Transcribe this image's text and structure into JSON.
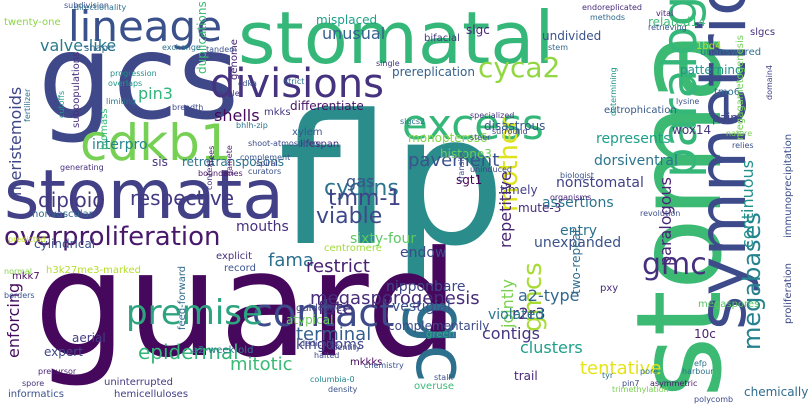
{
  "words": [
    {
      "text": "flp",
      "color": "#2a8c8b"
    },
    {
      "text": "guard",
      "color": "#46085c"
    },
    {
      "text": "stoma",
      "color": "#3cba74"
    },
    {
      "text": "gcs",
      "color": "#3f4889"
    },
    {
      "text": "stomatal",
      "color": "#35b779"
    },
    {
      "text": "stomata",
      "color": "#424086"
    },
    {
      "text": "symmetric",
      "color": "#3d4b8a"
    },
    {
      "text": "paralogue",
      "color": "#35b779"
    },
    {
      "text": "gc",
      "color": "#2d708e"
    },
    {
      "text": "lineage",
      "color": "#3b518b"
    },
    {
      "text": "divisions",
      "color": "#46337f"
    },
    {
      "text": "excess",
      "color": "#35b779"
    },
    {
      "text": "cdkb1",
      "color": "#75d054"
    },
    {
      "text": "contact",
      "color": "#3e4a89"
    },
    {
      "text": "premise",
      "color": "#2ea37f"
    },
    {
      "text": "overproliferation",
      "color": "#48196b"
    },
    {
      "text": "cyca2",
      "color": "#91d742"
    },
    {
      "text": "mother",
      "color": "#dde318"
    },
    {
      "text": "gmcs",
      "color": "#a8db34"
    },
    {
      "text": "gmc",
      "color": "#46307e"
    },
    {
      "text": "megabases",
      "color": "#26828e"
    },
    {
      "text": "megasporogenesis",
      "color": "#472c7a"
    },
    {
      "text": "viable",
      "color": "#3e4989"
    },
    {
      "text": "cyclins",
      "color": "#2c738e"
    },
    {
      "text": "tmm-1",
      "color": "#404387"
    },
    {
      "text": "respective",
      "color": "#443a83"
    },
    {
      "text": "diploid",
      "color": "#453882"
    },
    {
      "text": "pavement",
      "color": "#3b528b"
    },
    {
      "text": "epidermal",
      "color": "#32b67a"
    },
    {
      "text": "terminal",
      "color": "#355f8d"
    },
    {
      "text": "mitotic",
      "color": "#3aba76"
    },
    {
      "text": "fama",
      "color": "#2d708e"
    },
    {
      "text": "restrict",
      "color": "#482173"
    },
    {
      "text": "fate",
      "color": "#472a7a"
    },
    {
      "text": "gas",
      "color": "#3a548c"
    },
    {
      "text": "a2-type",
      "color": "#31688e"
    },
    {
      "text": "r2r3",
      "color": "#472d7b"
    },
    {
      "text": "contigs",
      "color": "#453581"
    },
    {
      "text": "clusters",
      "color": "#1fa088"
    },
    {
      "text": "tentative",
      "color": "#e5e419"
    },
    {
      "text": "meristemoids",
      "color": "#3f4788"
    },
    {
      "text": "valve-like",
      "color": "#297b8e"
    },
    {
      "text": "pin3",
      "color": "#30b57a"
    },
    {
      "text": "unusual",
      "color": "#34618d"
    },
    {
      "text": "jointly",
      "color": "#7ad151"
    },
    {
      "text": "repetitive",
      "color": "#482475"
    },
    {
      "text": "paralogous",
      "color": "#482677"
    },
    {
      "text": "enforcing",
      "color": "#460b5e"
    },
    {
      "text": "shells",
      "color": "#460a5d"
    },
    {
      "text": "continuous",
      "color": "#20928c"
    },
    {
      "text": "kingdoms",
      "color": "#3f4889"
    },
    {
      "text": "interpro",
      "color": "#25848e"
    },
    {
      "text": "mouths",
      "color": "#472f7d"
    },
    {
      "text": "dorsiventral",
      "color": "#2b758e"
    },
    {
      "text": "unexpanded",
      "color": "#3b528b"
    },
    {
      "text": "nonstomatal",
      "color": "#414287"
    },
    {
      "text": "entry",
      "color": "#2c728e"
    },
    {
      "text": "represents",
      "color": "#1f9e89"
    },
    {
      "text": "symmetric-small",
      "color": "#482173"
    },
    {
      "text": "two-repeat",
      "color": "#2f6c8e"
    },
    {
      "text": "sixty-four",
      "color": "#5cc863"
    },
    {
      "text": "nipponbare",
      "color": "#3f4788"
    },
    {
      "text": "vestigial",
      "color": "#3b528b"
    },
    {
      "text": "violated",
      "color": "#2a778e"
    },
    {
      "text": "assertions",
      "color": "#2b758e"
    },
    {
      "text": "mute-3",
      "color": "#472a7a"
    },
    {
      "text": "timely",
      "color": "#423f85"
    },
    {
      "text": "endow",
      "color": "#3e4989"
    },
    {
      "text": "duplications",
      "color": "#3bbb75"
    },
    {
      "text": "sgt1",
      "color": "#440154"
    },
    {
      "text": "histone3",
      "color": "#6ccd5a"
    },
    {
      "text": "monopteros6",
      "color": "#87d549"
    },
    {
      "text": "retrotransposons",
      "color": "#2c738e"
    },
    {
      "text": "sis",
      "color": "#46337f"
    },
    {
      "text": "shape",
      "color": "#31688e"
    },
    {
      "text": "misplaced",
      "color": "#1fa188"
    },
    {
      "text": "bifacial",
      "color": "#453882"
    },
    {
      "text": "slgc",
      "color": "#482878"
    },
    {
      "text": "undivided",
      "color": "#3b528b"
    },
    {
      "text": "related14",
      "color": "#3dbc74"
    },
    {
      "text": "1bd4",
      "color": "#bddf26"
    },
    {
      "text": "patterning",
      "color": "#21918c"
    },
    {
      "text": "domain4",
      "color": "#424086"
    },
    {
      "text": "slgcs",
      "color": "#472f7d"
    },
    {
      "text": "eutrophication",
      "color": "#38598c"
    },
    {
      "text": "disastrous",
      "color": "#38598c"
    },
    {
      "text": "prereplication",
      "color": "#34618d"
    },
    {
      "text": "twenty-one",
      "color": "#8bd646"
    },
    {
      "text": "subpopulations",
      "color": "#472f7d"
    },
    {
      "text": "biomass",
      "color": "#35b779"
    },
    {
      "text": "pin3-b",
      "color": "#2e6e8e"
    },
    {
      "text": "genome",
      "color": "#482576"
    },
    {
      "text": "cdka",
      "color": "#3b528b"
    },
    {
      "text": "differentiate",
      "color": "#471365"
    },
    {
      "text": "mkks",
      "color": "#453882"
    },
    {
      "text": "lifespan",
      "color": "#472d7b"
    },
    {
      "text": "unanswered",
      "color": "#2c728e"
    },
    {
      "text": "tmo6",
      "color": "#2e6e8e"
    },
    {
      "text": "paint",
      "color": "#414487"
    },
    {
      "text": "wox14",
      "color": "#463480"
    },
    {
      "text": "megagametogenesis",
      "color": "#73d056"
    },
    {
      "text": "proliferation",
      "color": "#3e4989"
    },
    {
      "text": "immunoprecipitation",
      "color": "#3d4e8a"
    },
    {
      "text": "chemically",
      "color": "#2f6b8e"
    },
    {
      "text": "megaspores",
      "color": "#58c765"
    },
    {
      "text": "pxy",
      "color": "#472c7a"
    },
    {
      "text": "10c",
      "color": "#481f70"
    },
    {
      "text": "mkkks",
      "color": "#46075a"
    },
    {
      "text": "complementarily",
      "color": "#3e4989"
    },
    {
      "text": "a2-week-old",
      "color": "#2b758e"
    },
    {
      "text": "feed-forward",
      "color": "#306a8e"
    },
    {
      "text": "atypical",
      "color": "#6ece58"
    },
    {
      "text": "guidelines",
      "color": "#414287"
    },
    {
      "text": "aerial",
      "color": "#433e85"
    },
    {
      "text": "mkk7",
      "color": "#470e61"
    },
    {
      "text": "cylindrical",
      "color": "#3b528b"
    },
    {
      "text": "nonvascular",
      "color": "#31688e"
    },
    {
      "text": "expert",
      "color": "#3f4788"
    },
    {
      "text": "uninterrupted",
      "color": "#443a83"
    },
    {
      "text": "informatics",
      "color": "#3b518b"
    },
    {
      "text": "hemicelluloses",
      "color": "#424086"
    },
    {
      "text": "overuse",
      "color": "#3aba76"
    },
    {
      "text": "trail",
      "color": "#482878"
    },
    {
      "text": "green",
      "color": "#2ab07f"
    },
    {
      "text": "h3k27me3-marked",
      "color": "#b5de2b"
    },
    {
      "text": "record",
      "color": "#3a548c"
    },
    {
      "text": "centromere",
      "color": "#a0da39"
    },
    {
      "text": "explicit",
      "color": "#46337f"
    },
    {
      "text": "mkks2",
      "color": "#3e4989"
    },
    {
      "text": "predicted",
      "color": "#c2df23"
    },
    {
      "text": "exchange",
      "color": "#2c728e"
    },
    {
      "text": "fertilizer",
      "color": "#2c728e"
    },
    {
      "text": "progression",
      "color": "#228c8d"
    },
    {
      "text": "overlaps",
      "color": "#1f9a8a"
    },
    {
      "text": "limiting",
      "color": "#2b758e"
    },
    {
      "text": "breadth",
      "color": "#3e4a89"
    },
    {
      "text": "cutoffs",
      "color": "#1f9a8a"
    },
    {
      "text": "subdivision",
      "color": "#3b528b"
    },
    {
      "text": "stem",
      "color": "#31688e"
    },
    {
      "text": "vital",
      "color": "#482475"
    },
    {
      "text": "retrieving",
      "color": "#3b528b"
    },
    {
      "text": "endoreplicated",
      "color": "#472d7b"
    },
    {
      "text": "methods",
      "color": "#31688e"
    },
    {
      "text": "harbour",
      "color": "#2c728e"
    },
    {
      "text": "pin7",
      "color": "#3e4a89"
    },
    {
      "text": "asymmetric",
      "color": "#481a6c"
    },
    {
      "text": "polycomb",
      "color": "#3e4989"
    },
    {
      "text": "tyr",
      "color": "#2e6e8e"
    },
    {
      "text": "pore",
      "color": "#2c728e"
    },
    {
      "text": "efp",
      "color": "#2b758e"
    },
    {
      "text": "lysine",
      "color": "#3a548c"
    },
    {
      "text": "nature",
      "color": "#7ad151"
    },
    {
      "text": "relies",
      "color": "#3b518b"
    },
    {
      "text": "xylem",
      "color": "#38598c"
    },
    {
      "text": "surround",
      "color": "#3f4788"
    },
    {
      "text": "specialized",
      "color": "#46337f"
    },
    {
      "text": "biologist",
      "color": "#3b528b"
    },
    {
      "text": "organisms",
      "color": "#482576"
    },
    {
      "text": "single",
      "color": "#453882"
    },
    {
      "text": "steer",
      "color": "#3b518b"
    },
    {
      "text": "strict",
      "color": "#2c728e"
    },
    {
      "text": "tandem",
      "color": "#3a548c"
    },
    {
      "text": "nuclei",
      "color": "#453581"
    },
    {
      "text": "gamete",
      "color": "#481c6e"
    },
    {
      "text": "spiral",
      "color": "#3e4989"
    },
    {
      "text": "curators",
      "color": "#3b518b"
    },
    {
      "text": "trees",
      "color": "#471063"
    },
    {
      "text": "context",
      "color": "#46337f"
    },
    {
      "text": "boundaries",
      "color": "#481668"
    },
    {
      "text": "generating",
      "color": "#46307e"
    },
    {
      "text": "normal",
      "color": "#86d549"
    },
    {
      "text": "borders",
      "color": "#3a548c"
    },
    {
      "text": "halted",
      "color": "#3f4788"
    },
    {
      "text": "columbia-0",
      "color": "#25858e"
    },
    {
      "text": "dedicates",
      "color": "#414287"
    },
    {
      "text": "identity",
      "color": "#414487"
    },
    {
      "text": "density",
      "color": "#3b528b"
    },
    {
      "text": "chemistry",
      "color": "#3b528b"
    },
    {
      "text": "precursor",
      "color": "#481f70"
    },
    {
      "text": "spore",
      "color": "#46337f"
    },
    {
      "text": "directionality",
      "color": "#2e6f8e"
    },
    {
      "text": "tissue",
      "color": "#38598c"
    },
    {
      "text": "kmt-specific",
      "color": "#433e85"
    },
    {
      "text": "emit",
      "color": "#482475"
    },
    {
      "text": "stalk",
      "color": "#472d7b"
    },
    {
      "text": "trimethylation",
      "color": "#3b528b"
    },
    {
      "text": "determining",
      "color": "#7ad151"
    },
    {
      "text": "revolution",
      "color": "#20928c"
    },
    {
      "text": "arranged",
      "color": "#3b518b"
    },
    {
      "text": "slgcs2",
      "color": "#3b528b"
    },
    {
      "text": "uninduced",
      "color": "#2c728e"
    },
    {
      "text": "transits",
      "color": "#404387"
    },
    {
      "text": "software-assisted",
      "color": "#3e4989"
    },
    {
      "text": "bhlh-zip",
      "color": "#2e6e8e"
    },
    {
      "text": "shoot-atmosphere",
      "color": "#2c728e"
    },
    {
      "text": "complement",
      "color": "#3e4989"
    },
    {
      "text": "intercalated",
      "color": "#3a548c"
    },
    {
      "text": "meristem",
      "color": "#2c728e"
    },
    {
      "text": "brassinosteroid",
      "color": "#3b528b"
    },
    {
      "text": "seedlings",
      "color": "#31688e"
    },
    {
      "text": "shoots",
      "color": "#2e6e8e"
    },
    {
      "text": "mix",
      "color": "#3e4989"
    }
  ]
}
